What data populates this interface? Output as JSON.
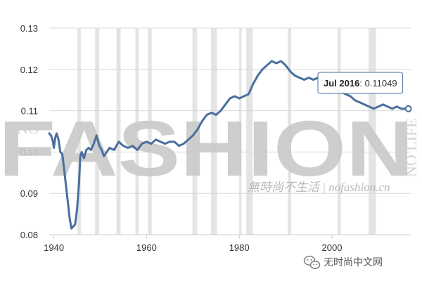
{
  "chart_data": {
    "type": "line",
    "title": "",
    "xlabel": "",
    "ylabel": "",
    "xlim": [
      1939,
      2017
    ],
    "ylim": [
      0.08,
      0.13
    ],
    "x_ticks": [
      1940,
      1960,
      1980,
      2000
    ],
    "y_ticks": [
      0.08,
      0.09,
      0.1,
      0.11,
      0.12,
      0.13
    ],
    "y_tick_labels": [
      "0.08",
      "0.09",
      "0.10",
      "0.11",
      "0.12",
      "0.13"
    ],
    "grid": true,
    "recession_bands": [
      [
        1945.1,
        1945.8
      ],
      [
        1948.9,
        1949.8
      ],
      [
        1953.5,
        1954.4
      ],
      [
        1957.6,
        1958.3
      ],
      [
        1960.3,
        1961.1
      ],
      [
        1969.9,
        1970.9
      ],
      [
        1973.9,
        1975.2
      ],
      [
        1980.0,
        1980.5
      ],
      [
        1981.5,
        1982.9
      ],
      [
        1990.5,
        1991.2
      ],
      [
        2001.2,
        2001.9
      ],
      [
        2007.9,
        2009.5
      ]
    ],
    "series": [
      {
        "color": "#4a6f9e",
        "points": [
          [
            1939.0,
            0.1045
          ],
          [
            1939.4,
            0.104
          ],
          [
            1939.8,
            0.1025
          ],
          [
            1940.0,
            0.101
          ],
          [
            1940.3,
            0.1035
          ],
          [
            1940.6,
            0.1045
          ],
          [
            1941.0,
            0.103
          ],
          [
            1941.4,
            0.1
          ],
          [
            1941.8,
            0.0995
          ],
          [
            1942.2,
            0.096
          ],
          [
            1942.6,
            0.092
          ],
          [
            1943.0,
            0.088
          ],
          [
            1943.4,
            0.084
          ],
          [
            1943.8,
            0.0815
          ],
          [
            1944.2,
            0.082
          ],
          [
            1944.6,
            0.0825
          ],
          [
            1945.0,
            0.086
          ],
          [
            1945.4,
            0.092
          ],
          [
            1945.7,
            0.099
          ],
          [
            1946.0,
            0.1
          ],
          [
            1946.5,
            0.0985
          ],
          [
            1947.0,
            0.1005
          ],
          [
            1947.5,
            0.101
          ],
          [
            1948.0,
            0.1005
          ],
          [
            1948.6,
            0.102
          ],
          [
            1949.2,
            0.104
          ],
          [
            1949.8,
            0.1015
          ],
          [
            1950.3,
            0.1005
          ],
          [
            1950.8,
            0.099
          ],
          [
            1951.4,
            0.1
          ],
          [
            1952.0,
            0.101
          ],
          [
            1953.0,
            0.1005
          ],
          [
            1954.0,
            0.1025
          ],
          [
            1955.0,
            0.1015
          ],
          [
            1956.0,
            0.101
          ],
          [
            1957.0,
            0.1015
          ],
          [
            1958.0,
            0.1005
          ],
          [
            1959.0,
            0.102
          ],
          [
            1960.0,
            0.1025
          ],
          [
            1961.0,
            0.102
          ],
          [
            1962.0,
            0.103
          ],
          [
            1963.0,
            0.1025
          ],
          [
            1964.0,
            0.102
          ],
          [
            1965.0,
            0.1025
          ],
          [
            1966.0,
            0.1025
          ],
          [
            1967.0,
            0.1015
          ],
          [
            1968.0,
            0.102
          ],
          [
            1969.0,
            0.103
          ],
          [
            1970.0,
            0.104
          ],
          [
            1971.0,
            0.1055
          ],
          [
            1972.0,
            0.1075
          ],
          [
            1973.0,
            0.109
          ],
          [
            1974.0,
            0.1095
          ],
          [
            1975.0,
            0.109
          ],
          [
            1976.0,
            0.11
          ],
          [
            1977.0,
            0.1115
          ],
          [
            1978.0,
            0.113
          ],
          [
            1979.0,
            0.1135
          ],
          [
            1980.0,
            0.113
          ],
          [
            1981.0,
            0.1135
          ],
          [
            1982.0,
            0.114
          ],
          [
            1983.0,
            0.1165
          ],
          [
            1984.0,
            0.1185
          ],
          [
            1985.0,
            0.12
          ],
          [
            1986.0,
            0.121
          ],
          [
            1987.0,
            0.122
          ],
          [
            1988.0,
            0.1215
          ],
          [
            1989.0,
            0.122
          ],
          [
            1990.0,
            0.121
          ],
          [
            1991.0,
            0.1195
          ],
          [
            1992.0,
            0.1185
          ],
          [
            1993.0,
            0.118
          ],
          [
            1994.0,
            0.1175
          ],
          [
            1995.0,
            0.118
          ],
          [
            1996.0,
            0.1175
          ],
          [
            1997.0,
            0.118
          ],
          [
            1998.0,
            0.117
          ],
          [
            1999.0,
            0.1165
          ],
          [
            2000.0,
            0.116
          ],
          [
            2001.0,
            0.115
          ],
          [
            2002.0,
            0.1145
          ],
          [
            2003.0,
            0.114
          ],
          [
            2004.0,
            0.1135
          ],
          [
            2005.0,
            0.1125
          ],
          [
            2006.0,
            0.112
          ],
          [
            2007.0,
            0.1115
          ],
          [
            2008.0,
            0.111
          ],
          [
            2009.0,
            0.1105
          ],
          [
            2010.0,
            0.111
          ],
          [
            2011.0,
            0.1115
          ],
          [
            2012.0,
            0.111
          ],
          [
            2013.0,
            0.1105
          ],
          [
            2014.0,
            0.111
          ],
          [
            2015.0,
            0.1105
          ],
          [
            2016.5,
            0.1105
          ]
        ]
      }
    ],
    "tooltip": {
      "label": "Jul 2016",
      "separator": ": ",
      "value": "0.11049",
      "x": 2016.5,
      "y": 0.11049
    }
  },
  "watermark": {
    "big": "FASHION",
    "left": "NO",
    "right": "NO LIFE",
    "sub": "無時尚不生活 | nofashion.cn"
  },
  "brand": {
    "name": "无时尚中文网",
    "icon": "wechat-icon"
  }
}
